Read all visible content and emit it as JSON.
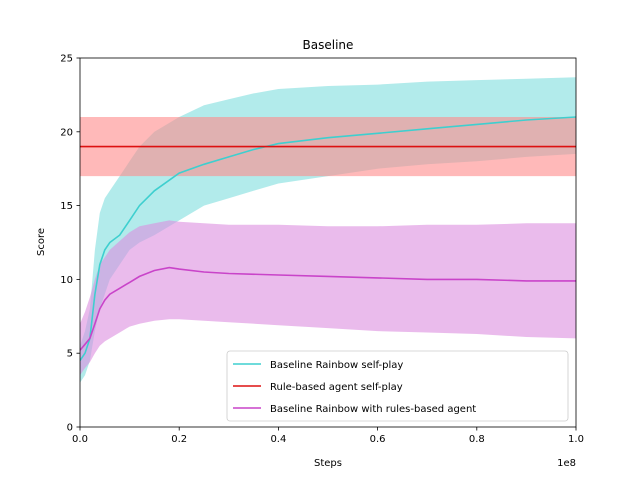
{
  "chart_data": {
    "type": "line",
    "title": "Baseline",
    "xlabel": "Steps",
    "ylabel": "Score",
    "x_offset_label": "1e8",
    "xlim": [
      0,
      1.0
    ],
    "ylim": [
      0,
      25
    ],
    "x_ticks": [
      "0.0",
      "0.2",
      "0.4",
      "0.6",
      "0.8",
      "1.0"
    ],
    "y_ticks": [
      "0",
      "5",
      "10",
      "15",
      "20",
      "25"
    ],
    "grid": false,
    "legend_position": "lower-right",
    "series": [
      {
        "name": "Baseline Rainbow self-play",
        "color": "#3ecfcf",
        "band_color": "#7fdede",
        "x": [
          0.0,
          0.01,
          0.02,
          0.03,
          0.04,
          0.05,
          0.06,
          0.08,
          0.1,
          0.12,
          0.15,
          0.2,
          0.25,
          0.3,
          0.35,
          0.4,
          0.5,
          0.6,
          0.7,
          0.8,
          0.9,
          1.0
        ],
        "mean": [
          4.5,
          5.0,
          6.0,
          9.0,
          11.0,
          12.0,
          12.5,
          13.0,
          14.0,
          15.0,
          16.0,
          17.2,
          17.8,
          18.3,
          18.8,
          19.2,
          19.6,
          19.9,
          20.2,
          20.5,
          20.8,
          21.0
        ],
        "upper": [
          5.5,
          6.5,
          8.0,
          12.0,
          14.5,
          15.5,
          16.0,
          17.0,
          18.0,
          19.0,
          20.0,
          21.0,
          21.8,
          22.2,
          22.6,
          22.9,
          23.1,
          23.2,
          23.4,
          23.5,
          23.6,
          23.7
        ],
        "lower": [
          3.0,
          3.5,
          4.5,
          6.5,
          8.0,
          9.0,
          10.0,
          11.0,
          12.0,
          12.5,
          13.0,
          14.0,
          15.0,
          15.5,
          16.0,
          16.5,
          17.0,
          17.5,
          17.8,
          18.0,
          18.3,
          18.5
        ]
      },
      {
        "name": "Rule-based agent self-play",
        "color": "#dd1111",
        "band_color": "#ff8a8a",
        "x": [
          0.0,
          1.0
        ],
        "mean": [
          19.0,
          19.0
        ],
        "upper": [
          21.0,
          21.0
        ],
        "lower": [
          17.0,
          17.0
        ]
      },
      {
        "name": "Baseline Rainbow with rules-based agent",
        "color": "#c944c9",
        "band_color": "#dc8ee0",
        "x": [
          0.0,
          0.01,
          0.02,
          0.03,
          0.04,
          0.05,
          0.06,
          0.08,
          0.1,
          0.12,
          0.15,
          0.18,
          0.2,
          0.25,
          0.3,
          0.4,
          0.5,
          0.6,
          0.7,
          0.8,
          0.9,
          1.0
        ],
        "mean": [
          5.2,
          5.6,
          6.0,
          7.0,
          8.0,
          8.6,
          9.0,
          9.4,
          9.8,
          10.2,
          10.6,
          10.8,
          10.7,
          10.5,
          10.4,
          10.3,
          10.2,
          10.1,
          10.0,
          10.0,
          9.9,
          9.9
        ],
        "upper": [
          7.0,
          7.8,
          8.8,
          10.0,
          11.0,
          11.5,
          12.0,
          12.6,
          13.2,
          13.6,
          13.8,
          14.0,
          13.9,
          13.8,
          13.7,
          13.7,
          13.6,
          13.6,
          13.7,
          13.7,
          13.8,
          13.8
        ],
        "lower": [
          3.5,
          4.0,
          4.4,
          5.0,
          5.5,
          5.8,
          6.0,
          6.4,
          6.8,
          7.0,
          7.2,
          7.3,
          7.3,
          7.2,
          7.1,
          6.9,
          6.7,
          6.5,
          6.4,
          6.3,
          6.1,
          6.0
        ]
      }
    ]
  }
}
